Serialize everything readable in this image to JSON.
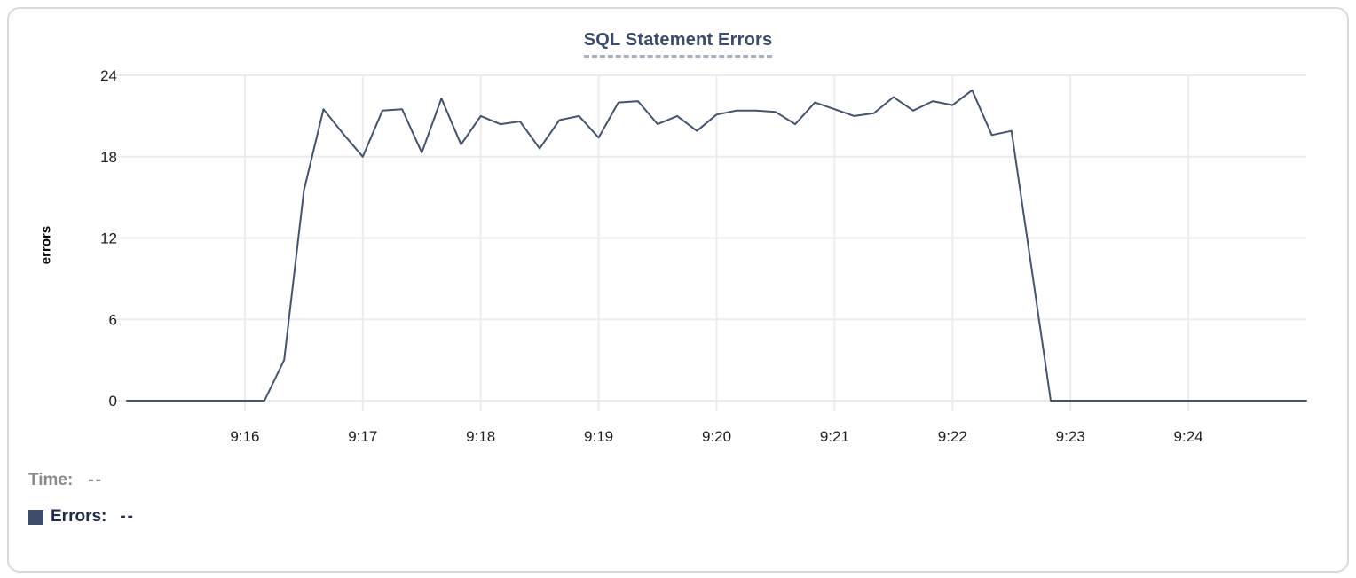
{
  "chart": {
    "title": "SQL Statement Errors",
    "ylabel": "errors"
  },
  "readout": {
    "time_label": "Time:",
    "time_value": "--",
    "errors_label": "Errors:",
    "errors_value": "--"
  },
  "colors": {
    "line": "#44536f",
    "title": "#3b4b6d",
    "grid": "#ececec",
    "swatch": "#3e4d6c",
    "time_text": "#8a8a8a",
    "errors_text": "#1e2b4f",
    "tick_text": "#202020"
  },
  "chart_data": {
    "type": "line",
    "title": "SQL Statement Errors",
    "xlabel": "",
    "ylabel": "errors",
    "ylim": [
      0,
      24
    ],
    "y_ticks": [
      0,
      6,
      12,
      18,
      24
    ],
    "x_tick_labels": [
      "9:16",
      "9:17",
      "9:18",
      "9:19",
      "9:20",
      "9:21",
      "9:22",
      "9:23",
      "9:24"
    ],
    "x_range": [
      "9:15:00",
      "9:25:00"
    ],
    "grid": true,
    "legend_position": "bottom-left",
    "series": [
      {
        "name": "Errors",
        "start_time": "9:15:00",
        "interval_seconds": 10,
        "values": [
          0,
          0,
          0,
          0,
          0,
          0,
          0,
          0,
          3,
          15.5,
          21.5,
          19.7,
          18,
          21.4,
          21.5,
          18.3,
          22.3,
          18.9,
          21,
          20.4,
          20.6,
          18.6,
          20.7,
          21,
          19.4,
          22,
          22.1,
          20.4,
          21,
          19.9,
          21.1,
          21.4,
          21.4,
          21.3,
          20.4,
          22,
          21.5,
          21,
          21.2,
          22.4,
          21.4,
          22.1,
          21.8,
          22.9,
          19.6,
          19.9,
          10,
          0,
          0,
          0,
          0,
          0,
          0,
          0,
          0,
          0,
          0,
          0,
          0,
          0,
          0
        ]
      }
    ]
  }
}
